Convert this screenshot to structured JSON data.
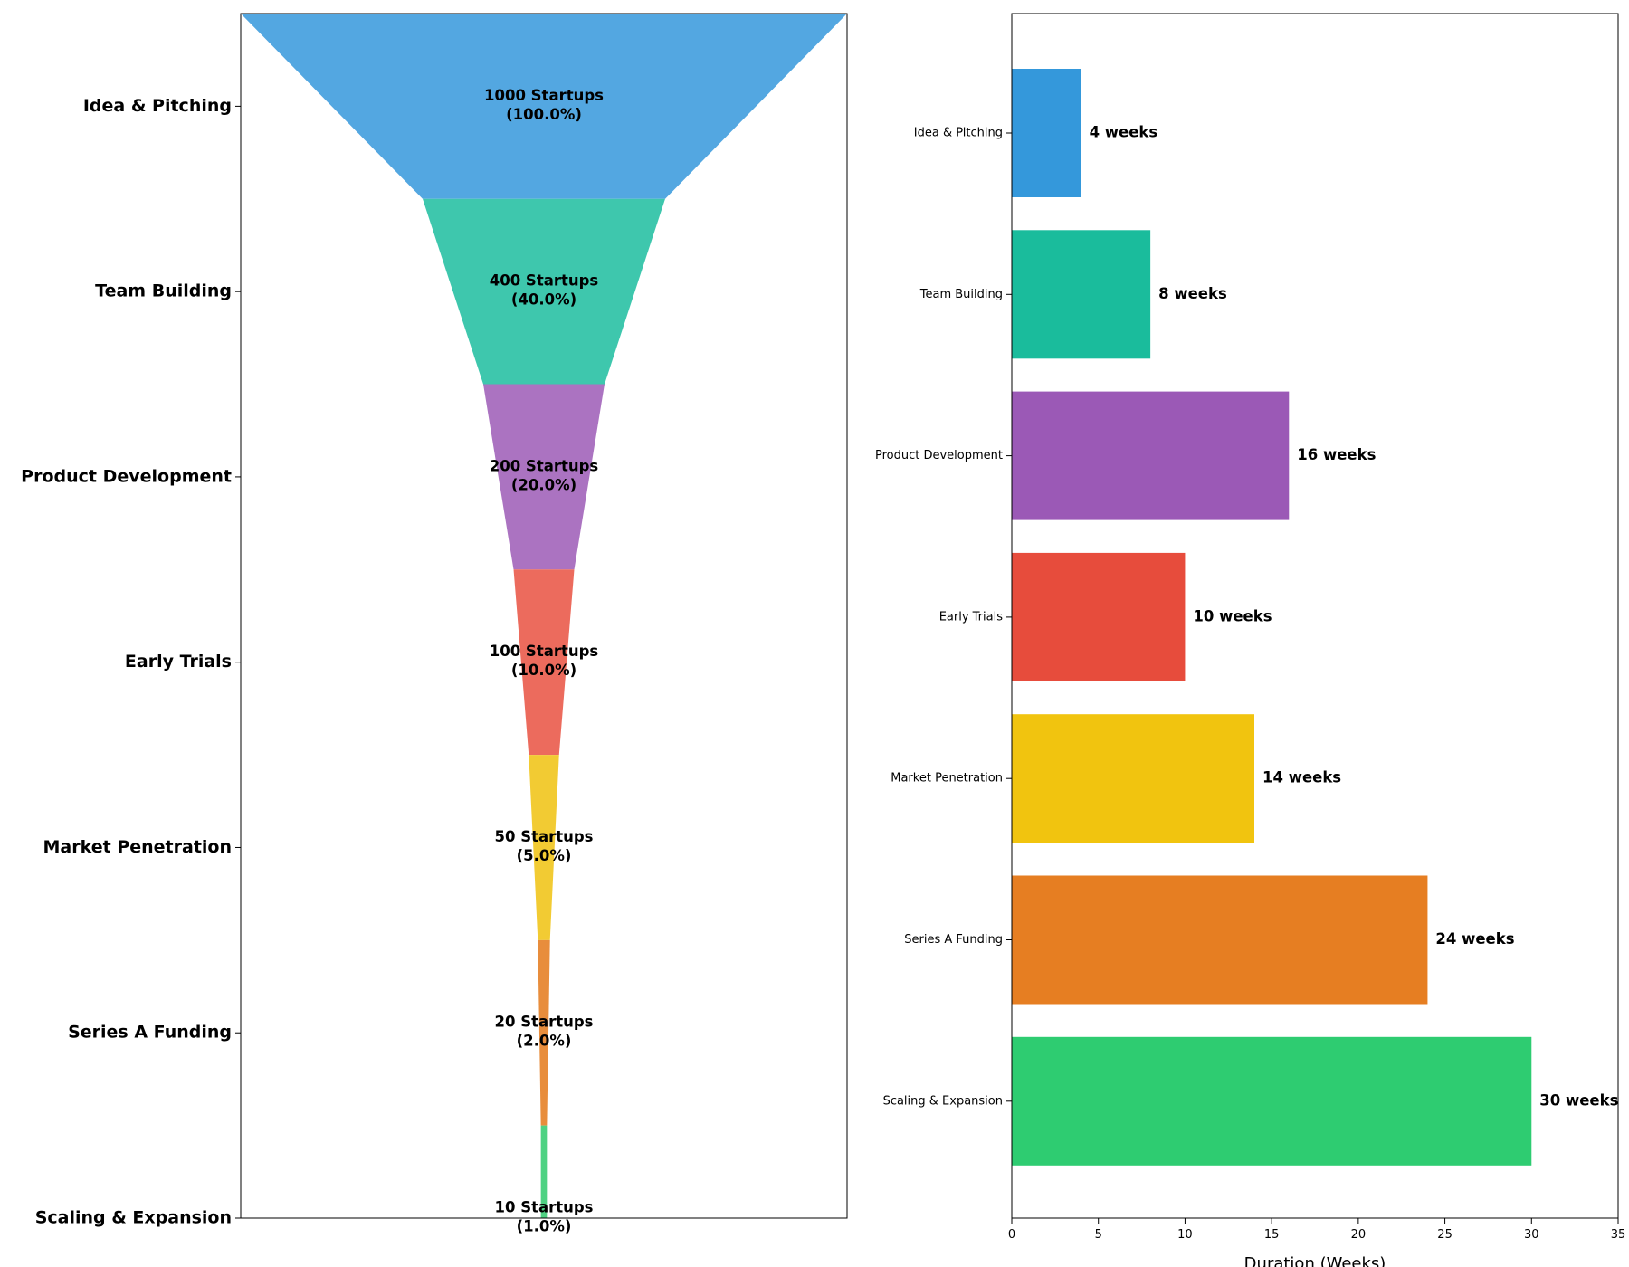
{
  "chart_data": [
    {
      "type": "funnel",
      "stages": [
        "Idea & Pitching",
        "Team Building",
        "Product Development",
        "Early Trials",
        "Market Penetration",
        "Series A Funding",
        "Scaling & Expansion"
      ],
      "values": [
        1000,
        400,
        200,
        100,
        50,
        20,
        10
      ],
      "value_labels": [
        "1000 Startups",
        "400 Startups",
        "200 Startups",
        "100 Startups",
        "50 Startups",
        "20 Startups",
        "10 Startups"
      ],
      "percent_labels": [
        "(100.0%)",
        "(40.0%)",
        "(20.0%)",
        "(10.0%)",
        "(5.0%)",
        "(2.0%)",
        "(1.0%)"
      ],
      "colors": [
        "#53a7e1",
        "#3ec7ad",
        "#ab73c1",
        "#ec6b5d",
        "#f2cb33",
        "#e88d3c",
        "#4fd283"
      ]
    },
    {
      "type": "bar",
      "orientation": "horizontal",
      "categories": [
        "Idea & Pitching",
        "Team Building",
        "Product Development",
        "Early Trials",
        "Market Penetration",
        "Series A Funding",
        "Scaling & Expansion"
      ],
      "values": [
        4,
        8,
        16,
        10,
        14,
        24,
        30
      ],
      "value_labels": [
        "4 weeks",
        "8 weeks",
        "16 weeks",
        "10 weeks",
        "14 weeks",
        "24 weeks",
        "30 weeks"
      ],
      "colors": [
        "#3498db",
        "#1abc9c",
        "#9b59b6",
        "#e74c3c",
        "#f1c40f",
        "#e67e22",
        "#2ecc71"
      ],
      "xlabel": "Duration (Weeks)",
      "xlim": [
        0,
        35
      ],
      "xticks": [
        "0",
        "5",
        "10",
        "15",
        "20",
        "25",
        "30",
        "35"
      ]
    }
  ]
}
